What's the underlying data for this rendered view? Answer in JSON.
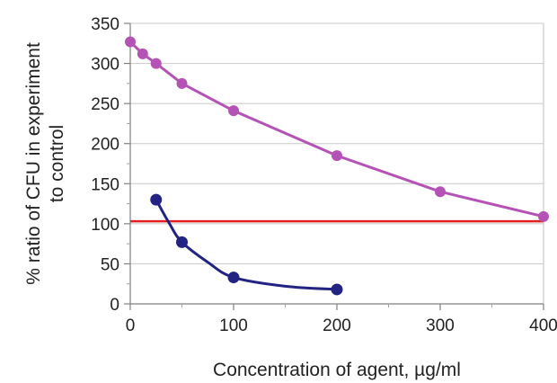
{
  "chart_data": {
    "type": "line",
    "title": "",
    "xlabel": "Concentration of agent, µg/ml",
    "ylabel_lines": [
      "% ratio of CFU in experiment",
      "to control"
    ],
    "xlim": [
      0,
      400
    ],
    "ylim": [
      0,
      350
    ],
    "x_ticks": [
      0,
      100,
      200,
      300,
      400
    ],
    "x_tick_labels": [
      "0",
      "100",
      "200",
      "300",
      "400"
    ],
    "y_ticks": [
      0,
      50,
      100,
      150,
      200,
      250,
      300,
      350
    ],
    "y_tick_labels": [
      "0",
      "50",
      "100",
      "150",
      "200",
      "250",
      "300",
      "350"
    ],
    "grid": "horizontal",
    "legend": "none",
    "series": [
      {
        "color": "#b552b6",
        "points": [
          [
            0,
            327
          ],
          [
            12,
            312
          ],
          [
            25,
            300
          ],
          [
            50,
            275
          ],
          [
            100,
            241
          ],
          [
            200,
            185
          ],
          [
            300,
            140
          ],
          [
            400,
            109
          ]
        ]
      },
      {
        "color": "#232384",
        "marker_points": [
          [
            25,
            130
          ],
          [
            50,
            77
          ],
          [
            100,
            33
          ],
          [
            200,
            18
          ]
        ],
        "line_points": [
          [
            25,
            130
          ],
          [
            38,
            100
          ],
          [
            50,
            77
          ],
          [
            75,
            52
          ],
          [
            100,
            33
          ],
          [
            150,
            22
          ],
          [
            200,
            18
          ]
        ]
      }
    ],
    "reference_line": {
      "y": 103,
      "color": "#e31e1e"
    }
  }
}
